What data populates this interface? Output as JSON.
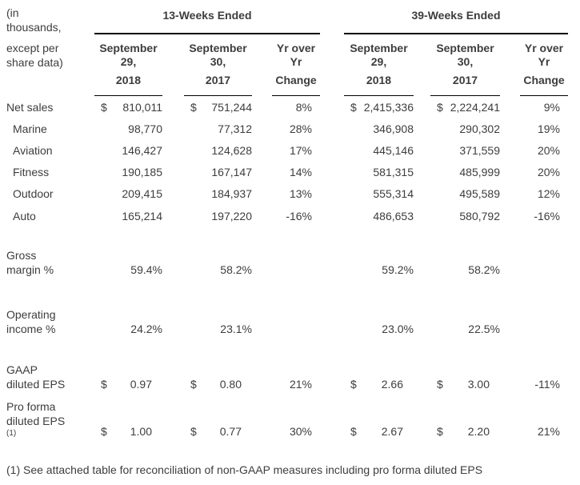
{
  "corner": {
    "para1": [
      "(in",
      "thousands,"
    ],
    "para2": [
      "except per",
      "share data)"
    ]
  },
  "groups": [
    {
      "title": "13-Weeks Ended",
      "columns": [
        {
          "date": "September 29,",
          "year": "2018"
        },
        {
          "date": "September 30,",
          "year": "2017"
        },
        {
          "date": "Yr over Yr",
          "year": "Change"
        }
      ]
    },
    {
      "title": "39-Weeks Ended",
      "columns": [
        {
          "date": "September 29,",
          "year": "2018"
        },
        {
          "date": "September 30,",
          "year": "2017"
        },
        {
          "date": "Yr over Yr",
          "year": "Change"
        }
      ]
    }
  ],
  "rows": [
    {
      "label_lines": [
        "Net sales"
      ],
      "cells": [
        {
          "d": "$",
          "v": "810,011"
        },
        {
          "d": "$",
          "v": "751,244"
        },
        {
          "v": "8%"
        },
        {
          "d": "$",
          "v": "2,415,336"
        },
        {
          "d": "$",
          "v": "2,224,241"
        },
        {
          "v": "9%"
        }
      ]
    },
    {
      "label_lines": [
        "Marine"
      ],
      "cells": [
        {
          "v": "98,770"
        },
        {
          "v": "77,312"
        },
        {
          "v": "28%"
        },
        {
          "v": "346,908"
        },
        {
          "v": "290,302"
        },
        {
          "v": "19%"
        }
      ]
    },
    {
      "label_lines": [
        "Aviation"
      ],
      "cells": [
        {
          "v": "146,427"
        },
        {
          "v": "124,628"
        },
        {
          "v": "17%"
        },
        {
          "v": "445,146"
        },
        {
          "v": "371,559"
        },
        {
          "v": "20%"
        }
      ]
    },
    {
      "label_lines": [
        "Fitness"
      ],
      "cells": [
        {
          "v": "190,185"
        },
        {
          "v": "167,147"
        },
        {
          "v": "14%"
        },
        {
          "v": "581,315"
        },
        {
          "v": "485,999"
        },
        {
          "v": "20%"
        }
      ]
    },
    {
      "label_lines": [
        "Outdoor"
      ],
      "cells": [
        {
          "v": "209,415"
        },
        {
          "v": "184,937"
        },
        {
          "v": "13%"
        },
        {
          "v": "555,314"
        },
        {
          "v": "495,589"
        },
        {
          "v": "12%"
        }
      ]
    },
    {
      "label_lines": [
        "Auto"
      ],
      "cells": [
        {
          "v": "165,214"
        },
        {
          "v": "197,220"
        },
        {
          "v": "-16%"
        },
        {
          "v": "486,653"
        },
        {
          "v": "580,792"
        },
        {
          "v": "-16%"
        }
      ]
    },
    {
      "label_lines": [
        "Gross",
        "margin %"
      ],
      "cells": [
        {
          "v": "59.4%"
        },
        {
          "v": "58.2%"
        },
        {
          "v": ""
        },
        {
          "v": "59.2%"
        },
        {
          "v": "58.2%"
        },
        {
          "v": ""
        }
      ]
    },
    {
      "label_lines": [
        "Operating",
        "income %"
      ],
      "cells": [
        {
          "v": "24.2%"
        },
        {
          "v": "23.1%"
        },
        {
          "v": ""
        },
        {
          "v": "23.0%"
        },
        {
          "v": "22.5%"
        },
        {
          "v": ""
        }
      ]
    },
    {
      "label_lines": [
        "GAAP",
        "diluted EPS"
      ],
      "cells": [
        {
          "d": "$",
          "v": "0.97"
        },
        {
          "d": "$",
          "v": "0.80"
        },
        {
          "v": "21%"
        },
        {
          "d": "$",
          "v": "2.66"
        },
        {
          "d": "$",
          "v": "3.00"
        },
        {
          "v": "-11%"
        }
      ]
    },
    {
      "label_lines": [
        "Pro forma",
        "diluted EPS"
      ],
      "label_sup": "(1)",
      "cells": [
        {
          "d": "$",
          "v": "1.00"
        },
        {
          "d": "$",
          "v": "0.77"
        },
        {
          "v": "30%"
        },
        {
          "d": "$",
          "v": "2.67"
        },
        {
          "d": "$",
          "v": "2.20"
        },
        {
          "v": "21%"
        }
      ]
    }
  ],
  "footnote": "(1) See attached table for reconciliation of non-GAAP measures including pro forma diluted EPS",
  "colors": {
    "text": "#3d3d3d",
    "rule": "#000000",
    "background": "#ffffff"
  }
}
